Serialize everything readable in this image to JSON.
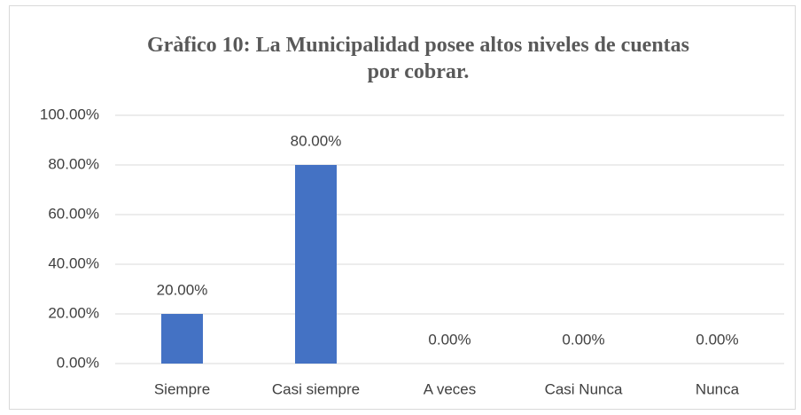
{
  "chart_data": {
    "type": "bar",
    "title": "Gràfico 10: La Municipalidad posee altos niveles de cuentas por cobrar.",
    "categories": [
      "Siempre",
      "Casi siempre",
      "A veces",
      "Casi Nunca",
      "Nunca"
    ],
    "values": [
      20,
      80,
      0,
      0,
      0
    ],
    "value_labels": [
      "20.00%",
      "80.00%",
      "0.00%",
      "0.00%",
      "0.00%"
    ],
    "color": "#4472c4",
    "ylim": [
      0,
      100
    ],
    "yticks": [
      {
        "value": 0,
        "label": "0.00%"
      },
      {
        "value": 20,
        "label": "20.00%"
      },
      {
        "value": 40,
        "label": "40.00%"
      },
      {
        "value": 60,
        "label": "60.00%"
      },
      {
        "value": 80,
        "label": "80.00%"
      },
      {
        "value": 100,
        "label": "100.00%"
      }
    ],
    "grid": true
  }
}
